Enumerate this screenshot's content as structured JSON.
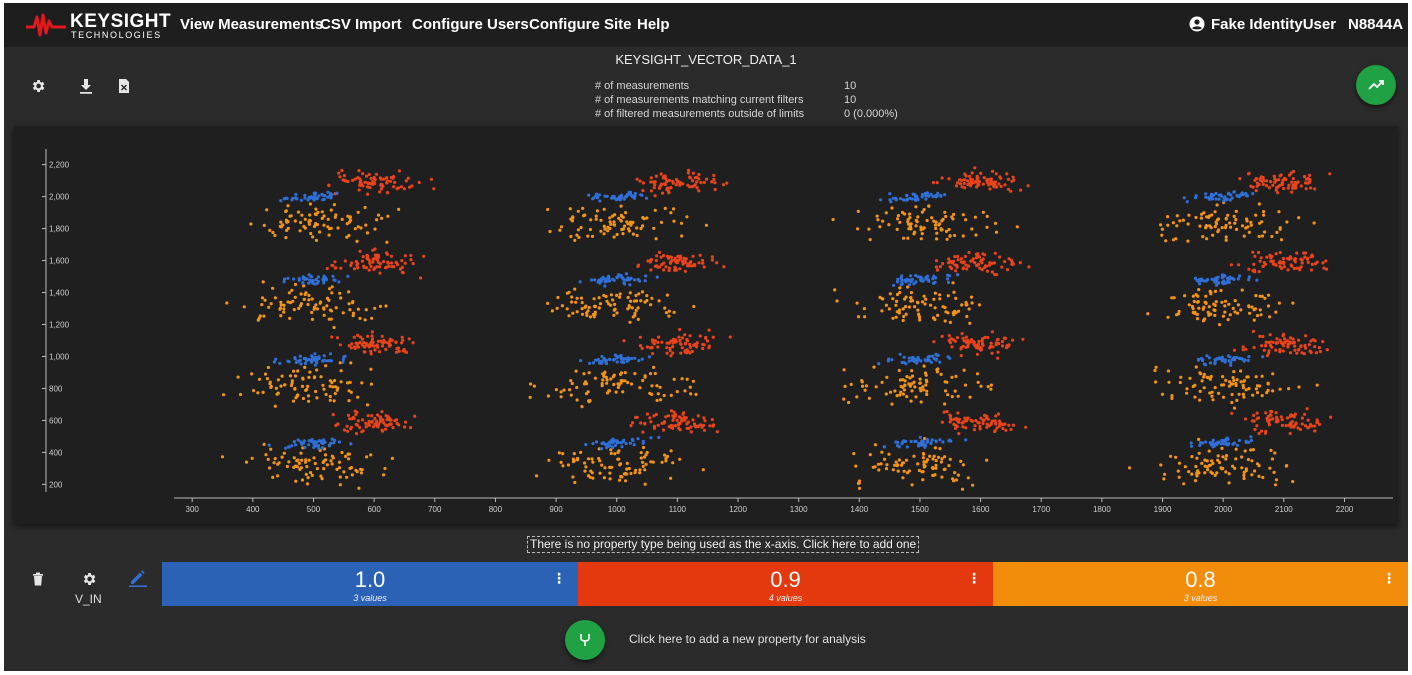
{
  "brand": {
    "name": "KEYSIGHT",
    "subtitle": "TECHNOLOGIES"
  },
  "nav": [
    {
      "label": "View Measurements"
    },
    {
      "label": "CSV Import"
    },
    {
      "label": "Configure Users"
    },
    {
      "label": "Configure Site"
    },
    {
      "label": "Help"
    }
  ],
  "user": {
    "name": "Fake IdentityUser",
    "icon": "account-circle-icon"
  },
  "model": "N8844A",
  "dataset": {
    "title": "KEYSIGHT_VECTOR_DATA_1"
  },
  "stats": [
    {
      "label": "# of measurements",
      "value": "10"
    },
    {
      "label": "# of measurements matching current filters",
      "value": "10"
    },
    {
      "label": "# of filtered measurements outside of limits",
      "value": "0 (0.000%)"
    }
  ],
  "chart_data": {
    "type": "scatter",
    "xlim": [
      270,
      2280
    ],
    "ylim": [
      140,
      2260
    ],
    "x_ticks": [
      300,
      400,
      500,
      600,
      700,
      800,
      900,
      1000,
      1100,
      1200,
      1300,
      1400,
      1500,
      1600,
      1700,
      1800,
      1900,
      2000,
      2100,
      2200
    ],
    "y_ticks": [
      200,
      400,
      600,
      800,
      1000,
      1200,
      1400,
      1600,
      1800,
      2000,
      2200
    ],
    "grid": false,
    "series": [
      {
        "color": "#2f6fd6",
        "x_centers": [
          500,
          1000,
          1500,
          2000
        ],
        "y_centers": [
          460,
          980,
          1480,
          2000
        ],
        "x_spread": 40,
        "y_spread": 25,
        "count_per_cluster": 45
      },
      {
        "color": "#e8441c",
        "x_centers": [
          600,
          1100,
          1600,
          2100
        ],
        "y_centers": [
          590,
          1080,
          1590,
          2090
        ],
        "x_spread": 55,
        "y_spread": 55,
        "count_per_cluster": 75
      },
      {
        "color": "#f39318",
        "x_centers": [
          500,
          1000,
          1500,
          2000
        ],
        "y_centers": [
          320,
          820,
          1320,
          1830
        ],
        "x_spread": 95,
        "y_spread": 95,
        "count_per_cluster": 85
      }
    ]
  },
  "xaxis_hint": "There is no property type being used as the x-axis. Click here to add one",
  "property": {
    "name": "V_IN",
    "values": [
      {
        "value": "1.0",
        "count": "3 values",
        "color": "#2b62b5"
      },
      {
        "value": "0.9",
        "count": "4 values",
        "color": "#e4390f"
      },
      {
        "value": "0.8",
        "count": "3 values",
        "color": "#f28c0b"
      }
    ]
  },
  "add_property_hint": "Click here to add a new property for analysis"
}
